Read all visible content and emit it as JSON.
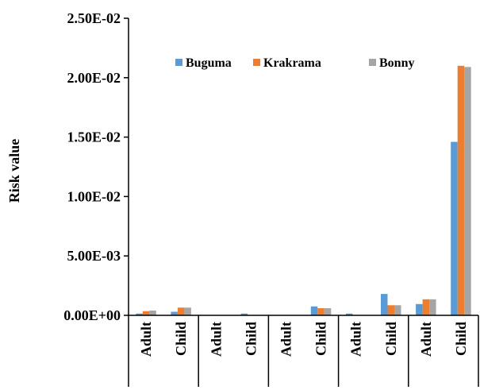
{
  "chart_data": {
    "type": "bar",
    "ylabel": "Risk value",
    "ylim": [
      0,
      0.025
    ],
    "yticks": [
      "0.00E+00",
      "5.00E-03",
      "1.00E-02",
      "1.50E-02",
      "2.00E-02",
      "2.50E-02"
    ],
    "ytick_values": [
      0,
      0.005,
      0.01,
      0.015,
      0.02,
      0.025
    ],
    "categories": [
      "Adult",
      "Child",
      "Adult",
      "Child",
      "Adult",
      "Child",
      "Adult",
      "Child",
      "Adult",
      "Child"
    ],
    "legend_position": "top-right",
    "series": [
      {
        "name": "Buguma",
        "color": "#5B9BD5",
        "values": [
          0.00015,
          0.0003,
          0.0,
          0.00015,
          0.0,
          0.00075,
          0.00015,
          0.0018,
          0.00095,
          0.0146
        ]
      },
      {
        "name": "Krakrama",
        "color": "#ED7D31",
        "values": [
          0.00035,
          0.00065,
          0.0,
          0.0,
          0.0,
          0.0006,
          0.0,
          0.00085,
          0.00135,
          0.021
        ]
      },
      {
        "name": "Bonny",
        "color": "#A5A5A5",
        "values": [
          0.0004,
          0.00065,
          0.0,
          0.0,
          0.0,
          0.0006,
          0.0,
          0.00085,
          0.00135,
          0.0209
        ]
      }
    ]
  }
}
